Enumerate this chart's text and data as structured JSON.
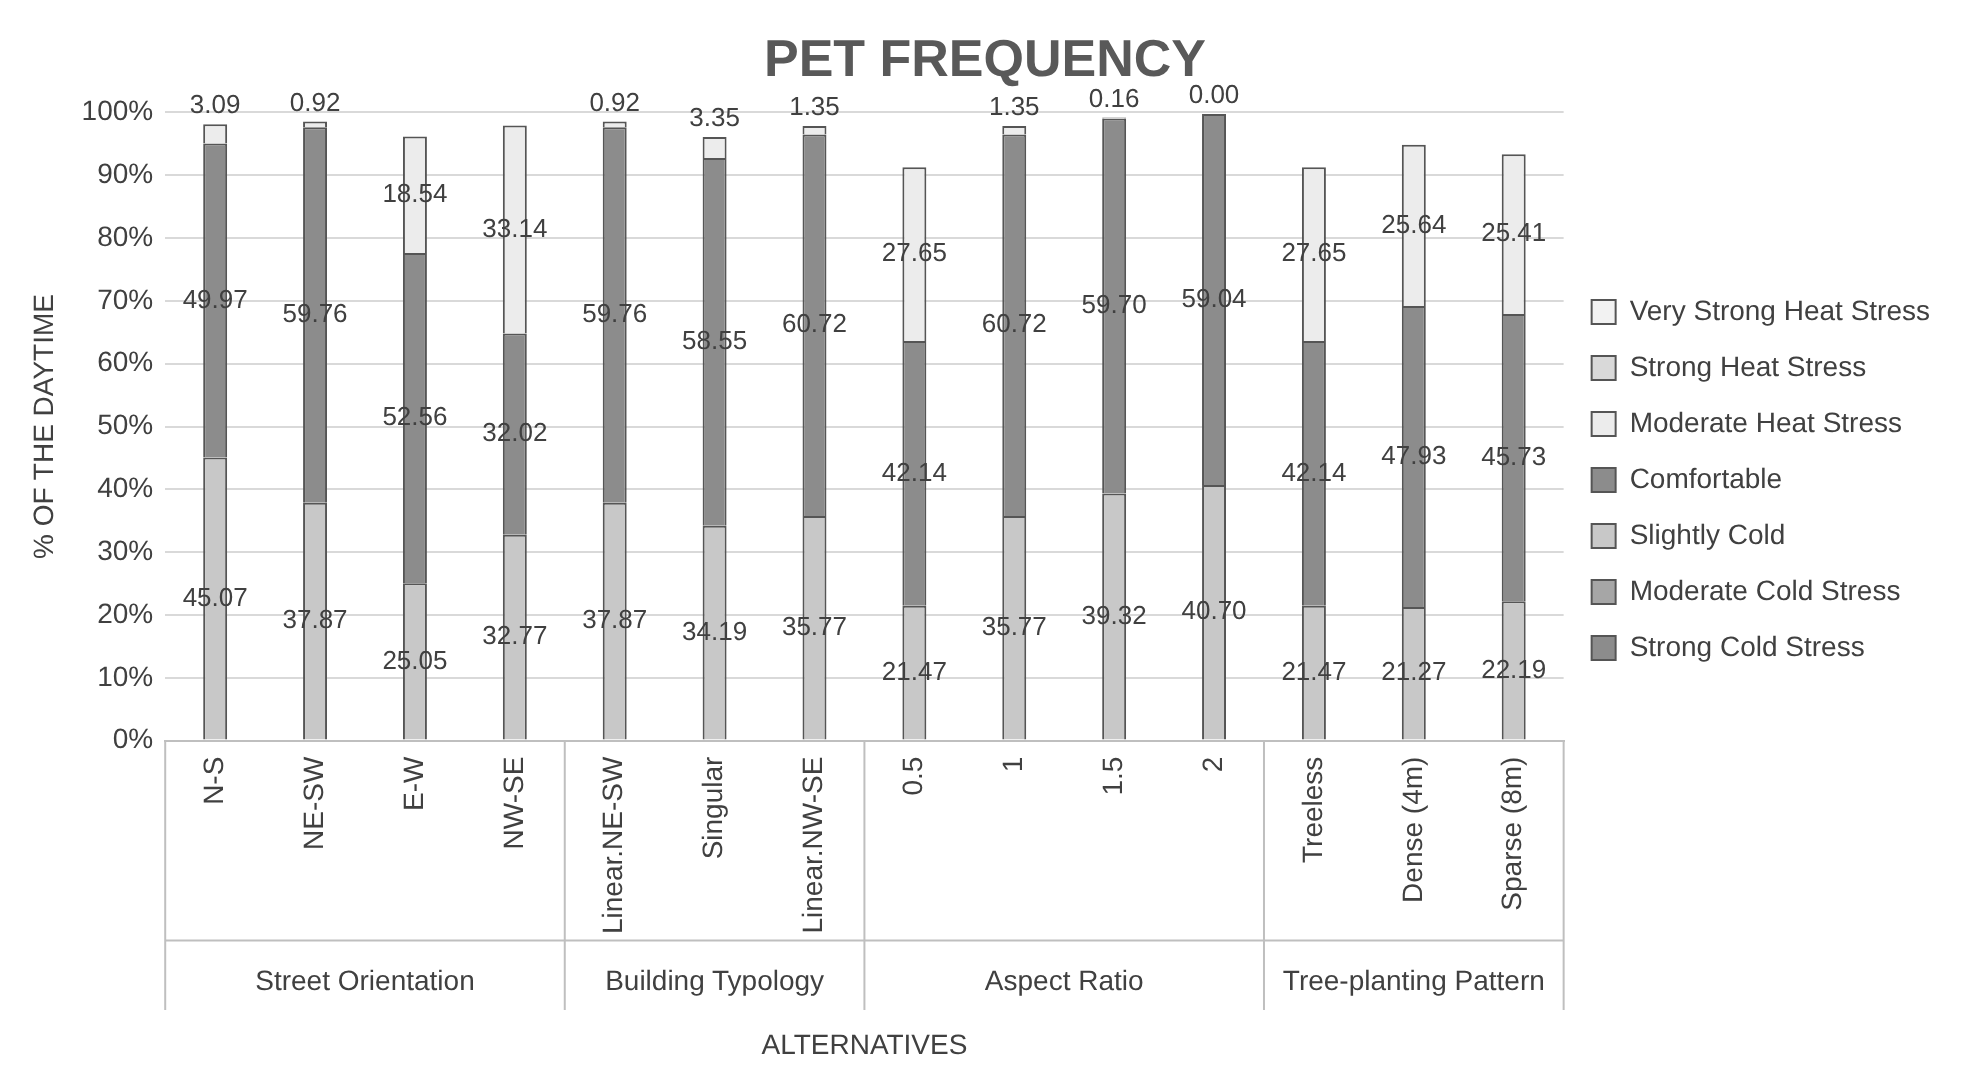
{
  "chart_data": {
    "type": "bar",
    "title": "PET FREQUENCY",
    "xlabel": "ALTERNATIVES",
    "ylabel": "% OF THE DAYTIME",
    "categories": [
      "N-S",
      "NE-SW",
      "E-W",
      "NW-SE",
      "Linear.NE-SW",
      "Singular",
      "Linear.NW-SE",
      "0.5",
      "1",
      "1.5",
      "2",
      "Treeless",
      "Dense (4m)",
      "Sparse (8m)"
    ],
    "stacked": true,
    "grid": "y",
    "legend": "right",
    "ylim": [
      0,
      100
    ],
    "yticks": [
      {
        "value": 0,
        "label": "0%"
      },
      {
        "value": 10,
        "label": "10%"
      },
      {
        "value": 20,
        "label": "20%"
      },
      {
        "value": 30,
        "label": "30%"
      },
      {
        "value": 40,
        "label": "40%"
      },
      {
        "value": 50,
        "label": "50%"
      },
      {
        "value": 60,
        "label": "60%"
      },
      {
        "value": 70,
        "label": "70%"
      },
      {
        "value": 80,
        "label": "80%"
      },
      {
        "value": 90,
        "label": "90%"
      },
      {
        "value": 100,
        "label": "100%"
      }
    ],
    "annotations": [
      "Street Orientation",
      "Building Typology",
      "Aspect Ratio",
      "Tree-planting Pattern"
    ],
    "series": [
      {
        "name": "Strong Cold Stress",
        "color": "#8c8c8c",
        "values": [
          null,
          null,
          null,
          null,
          null,
          null,
          null,
          null,
          null,
          null,
          null,
          null,
          null,
          null
        ]
      },
      {
        "name": "Moderate Cold Stress",
        "color": "#a6a6a6",
        "values": [
          null,
          null,
          null,
          null,
          null,
          null,
          null,
          null,
          null,
          null,
          null,
          null,
          null,
          null
        ]
      },
      {
        "name": "Slightly Cold",
        "color": "#c8c8c8",
        "values": [
          45.07,
          37.87,
          25.05,
          32.77,
          37.87,
          34.19,
          35.77,
          21.47,
          35.77,
          39.32,
          40.7,
          21.47,
          21.27,
          22.19
        ],
        "value_labels": [
          "45.07",
          "37.87",
          "25.05",
          "32.77",
          "37.87",
          "34.19",
          "35.77",
          "21.47",
          "35.77",
          "39.32",
          "40.70",
          "21.47",
          "21.27",
          "22.19"
        ]
      },
      {
        "name": "Comfortable",
        "color": "#8c8c8c",
        "values": [
          49.97,
          59.76,
          52.56,
          32.02,
          59.76,
          58.55,
          60.72,
          42.14,
          60.72,
          59.7,
          59.04,
          42.14,
          47.93,
          45.73
        ],
        "value_labels": [
          "49.97",
          "59.76",
          "52.56",
          "32.02",
          "59.76",
          "58.55",
          "60.72",
          "42.14",
          "60.72",
          "59.70",
          "59.04",
          "42.14",
          "47.93",
          "45.73"
        ]
      },
      {
        "name": "Moderate Heat Stress",
        "color": "#ececec",
        "values": [
          3.09,
          0.92,
          18.54,
          33.14,
          0.92,
          3.35,
          1.35,
          27.65,
          1.35,
          0.16,
          0.0,
          27.65,
          25.64,
          25.41
        ],
        "value_labels": [
          "3.09",
          "0.92",
          "18.54",
          "33.14",
          "0.92",
          "3.35",
          "1.35",
          "27.65",
          "1.35",
          "0.16",
          "0.00",
          "27.65",
          "25.64",
          "25.41"
        ]
      },
      {
        "name": "Strong Heat Stress",
        "color": "#d9d9d9",
        "values": [
          null,
          null,
          null,
          null,
          null,
          null,
          null,
          null,
          null,
          null,
          null,
          null,
          null,
          null
        ]
      },
      {
        "name": "Very Strong Heat Stress",
        "color": "#f2f2f2",
        "values": [
          null,
          null,
          null,
          null,
          null,
          null,
          null,
          null,
          null,
          null,
          null,
          null,
          null,
          null
        ]
      }
    ]
  }
}
